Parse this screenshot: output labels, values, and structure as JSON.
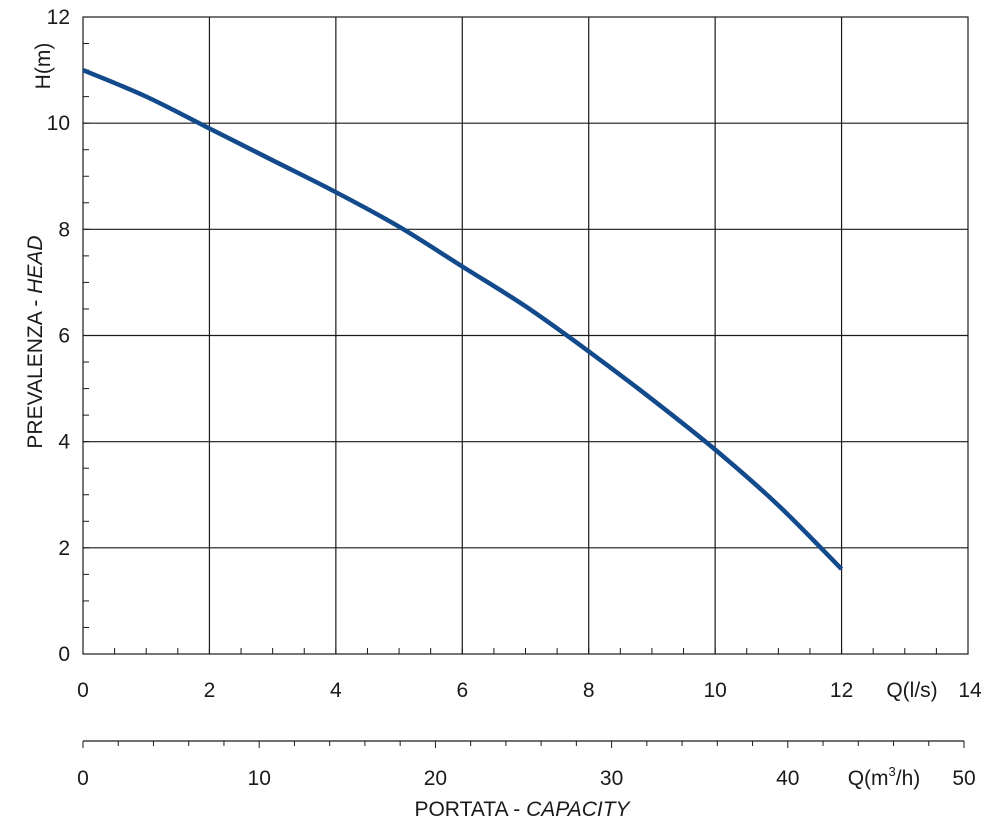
{
  "chart_data": {
    "type": "line",
    "x_unit_label": "Q(l/s)",
    "x2_unit_label_main": "Q(m",
    "x2_unit_label_sup": "3",
    "x2_unit_label_tail": "/h)",
    "y_unit_label": "H(m)",
    "ylabel_main": "PREVALENZA - ",
    "ylabel_italic": "HEAD",
    "xlabel_main": "PORTATA - ",
    "xlabel_italic": "CAPACITY",
    "xlim": [
      0,
      14
    ],
    "ylim": [
      0,
      12
    ],
    "x2lim": [
      0,
      50
    ],
    "x_ticks": [
      "0",
      "2",
      "4",
      "6",
      "8",
      "10",
      "12",
      "14"
    ],
    "y_ticks": [
      "0",
      "2",
      "4",
      "6",
      "8",
      "10",
      "12"
    ],
    "x2_ticks": [
      "0",
      "10",
      "20",
      "30",
      "40",
      "50"
    ],
    "grid": true,
    "line_color": "#124a8c",
    "series": [
      {
        "x": [
          0,
          1,
          2,
          3,
          4,
          5,
          6,
          7,
          8,
          9,
          10,
          11,
          12
        ],
        "y": [
          11.0,
          10.5,
          9.9,
          9.3,
          8.7,
          8.05,
          7.3,
          6.55,
          5.7,
          4.8,
          3.85,
          2.8,
          1.6
        ]
      }
    ]
  }
}
